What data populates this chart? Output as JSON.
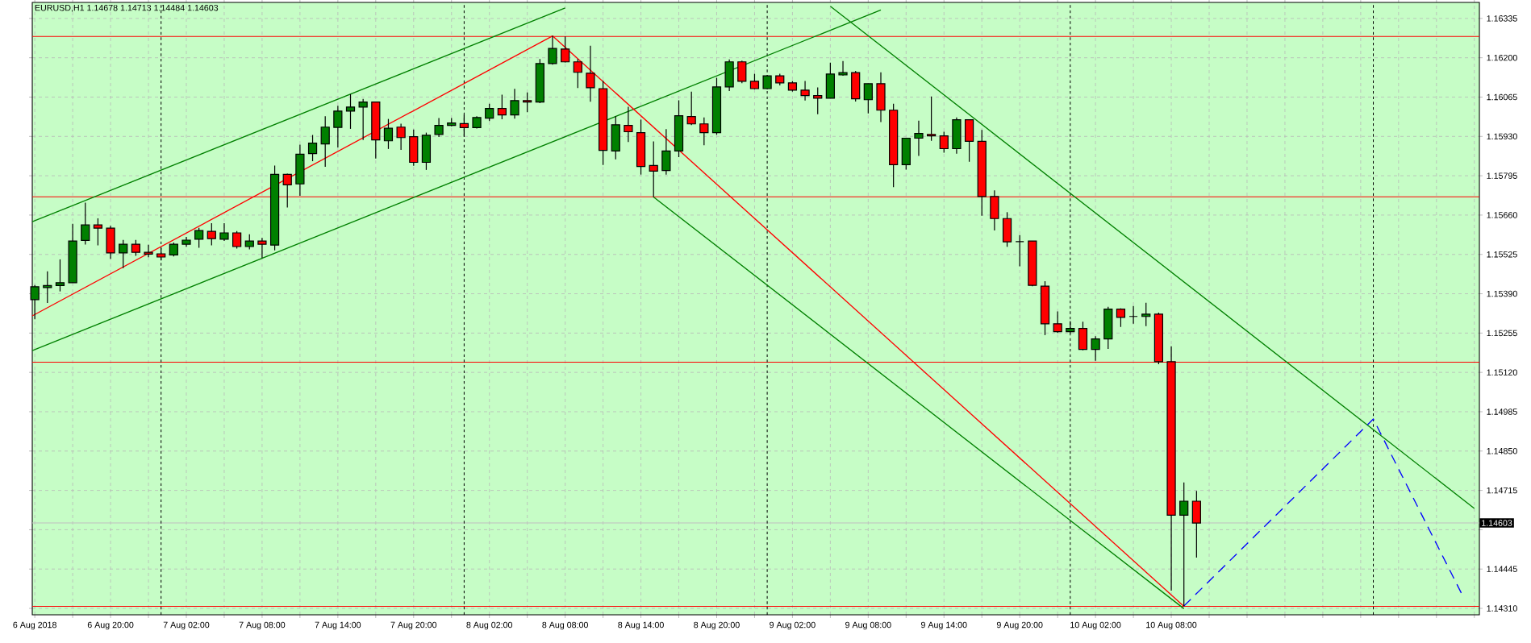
{
  "chart_data": {
    "type": "candlestick",
    "title": "EURUSD,H1  1.14678 1.14713 1.14484 1.14603",
    "x": [
      "2018-08-06T14:00",
      "2018-08-06T15:00",
      "2018-08-06T16:00",
      "2018-08-06T17:00",
      "2018-08-06T18:00",
      "2018-08-06T19:00",
      "2018-08-06T20:00",
      "2018-08-06T21:00",
      "2018-08-06T22:00",
      "2018-08-06T23:00",
      "2018-08-07T00:00",
      "2018-08-07T01:00",
      "2018-08-07T02:00",
      "2018-08-07T03:00",
      "2018-08-07T04:00",
      "2018-08-07T05:00",
      "2018-08-07T06:00",
      "2018-08-07T07:00",
      "2018-08-07T08:00",
      "2018-08-07T09:00",
      "2018-08-07T10:00",
      "2018-08-07T11:00",
      "2018-08-07T12:00",
      "2018-08-07T13:00",
      "2018-08-07T14:00",
      "2018-08-07T15:00",
      "2018-08-07T16:00",
      "2018-08-07T17:00",
      "2018-08-07T18:00",
      "2018-08-07T19:00",
      "2018-08-07T20:00",
      "2018-08-07T21:00",
      "2018-08-07T22:00",
      "2018-08-07T23:00",
      "2018-08-08T00:00",
      "2018-08-08T01:00",
      "2018-08-08T02:00",
      "2018-08-08T03:00",
      "2018-08-08T04:00",
      "2018-08-08T05:00",
      "2018-08-08T06:00",
      "2018-08-08T07:00",
      "2018-08-08T08:00",
      "2018-08-08T09:00",
      "2018-08-08T10:00",
      "2018-08-08T11:00",
      "2018-08-08T12:00",
      "2018-08-08T13:00",
      "2018-08-08T14:00",
      "2018-08-08T15:00",
      "2018-08-08T16:00",
      "2018-08-08T17:00",
      "2018-08-08T18:00",
      "2018-08-08T19:00",
      "2018-08-08T20:00",
      "2018-08-08T21:00",
      "2018-08-08T22:00",
      "2018-08-08T23:00",
      "2018-08-09T00:00",
      "2018-08-09T01:00",
      "2018-08-09T02:00",
      "2018-08-09T03:00",
      "2018-08-09T04:00",
      "2018-08-09T05:00",
      "2018-08-09T06:00",
      "2018-08-09T07:00",
      "2018-08-09T08:00",
      "2018-08-09T09:00",
      "2018-08-09T10:00",
      "2018-08-09T11:00",
      "2018-08-09T12:00",
      "2018-08-09T13:00",
      "2018-08-09T14:00",
      "2018-08-09T15:00",
      "2018-08-09T16:00",
      "2018-08-09T17:00",
      "2018-08-09T18:00",
      "2018-08-09T19:00",
      "2018-08-09T20:00",
      "2018-08-09T21:00",
      "2018-08-09T22:00",
      "2018-08-09T23:00",
      "2018-08-10T00:00",
      "2018-08-10T01:00",
      "2018-08-10T02:00",
      "2018-08-10T03:00",
      "2018-08-10T04:00",
      "2018-08-10T05:00",
      "2018-08-10T06:00",
      "2018-08-10T07:00",
      "2018-08-10T08:00",
      "2018-08-10T09:00",
      "2018-08-10T10:00"
    ],
    "ohlc": [
      [
        1.1537,
        1.1542,
        1.15302,
        1.15414
      ],
      [
        1.15411,
        1.15467,
        1.15358,
        1.15418
      ],
      [
        1.15418,
        1.15508,
        1.15398,
        1.15428
      ],
      [
        1.15428,
        1.1563,
        1.15428,
        1.15571
      ],
      [
        1.15573,
        1.15703,
        1.15559,
        1.15626
      ],
      [
        1.15626,
        1.15649,
        1.15556,
        1.15615
      ],
      [
        1.15615,
        1.15623,
        1.1551,
        1.1553
      ],
      [
        1.1553,
        1.15575,
        1.15478,
        1.1556
      ],
      [
        1.1556,
        1.15575,
        1.1552,
        1.15532
      ],
      [
        1.15532,
        1.15558,
        1.15515,
        1.15526
      ],
      [
        1.15527,
        1.15547,
        1.15504,
        1.15516
      ],
      [
        1.15523,
        1.15566,
        1.15518,
        1.1556
      ],
      [
        1.1556,
        1.15585,
        1.15551,
        1.15574
      ],
      [
        1.15577,
        1.15616,
        1.15548,
        1.15607
      ],
      [
        1.15604,
        1.15632,
        1.15556,
        1.15579
      ],
      [
        1.15577,
        1.15632,
        1.15571,
        1.15599
      ],
      [
        1.15599,
        1.15605,
        1.15545,
        1.15552
      ],
      [
        1.15552,
        1.15594,
        1.15542,
        1.15571
      ],
      [
        1.15571,
        1.15582,
        1.15513,
        1.1556
      ],
      [
        1.15557,
        1.1583,
        1.15539,
        1.158
      ],
      [
        1.158,
        1.15802,
        1.15686,
        1.15764
      ],
      [
        1.15767,
        1.15902,
        1.15726,
        1.15869
      ],
      [
        1.15871,
        1.15935,
        1.15845,
        1.15907
      ],
      [
        1.15904,
        1.15999,
        1.15826,
        1.15962
      ],
      [
        1.15961,
        1.16035,
        1.15892,
        1.16017
      ],
      [
        1.16017,
        1.16075,
        1.15956,
        1.16031
      ],
      [
        1.16031,
        1.16059,
        1.15918,
        1.16048
      ],
      [
        1.16048,
        1.16048,
        1.15854,
        1.15918
      ],
      [
        1.15915,
        1.1599,
        1.15887,
        1.15958
      ],
      [
        1.15962,
        1.15974,
        1.15884,
        1.15926
      ],
      [
        1.15929,
        1.15954,
        1.15829,
        1.15841
      ],
      [
        1.15841,
        1.15943,
        1.15815,
        1.15934
      ],
      [
        1.15937,
        1.15993,
        1.15928,
        1.15968
      ],
      [
        1.15968,
        1.15993,
        1.15965,
        1.15976
      ],
      [
        1.15974,
        1.16004,
        1.15929,
        1.1596
      ],
      [
        1.1596,
        1.15999,
        1.15957,
        1.15995
      ],
      [
        1.15993,
        1.16042,
        1.15983,
        1.16026
      ],
      [
        1.16026,
        1.16073,
        1.15989,
        1.16004
      ],
      [
        1.16004,
        1.16093,
        1.15991,
        1.16053
      ],
      [
        1.16053,
        1.16081,
        1.16013,
        1.16048
      ],
      [
        1.16048,
        1.16196,
        1.16044,
        1.1618
      ],
      [
        1.1618,
        1.16275,
        1.16176,
        1.16232
      ],
      [
        1.1623,
        1.16273,
        1.16184,
        1.16186
      ],
      [
        1.16186,
        1.16196,
        1.16096,
        1.1615
      ],
      [
        1.16147,
        1.16241,
        1.16049,
        1.16097
      ],
      [
        1.16094,
        1.16121,
        1.15832,
        1.15882
      ],
      [
        1.1588,
        1.15999,
        1.15851,
        1.1597
      ],
      [
        1.15968,
        1.16032,
        1.15911,
        1.15946
      ],
      [
        1.15943,
        1.15988,
        1.15799,
        1.15827
      ],
      [
        1.1583,
        1.15913,
        1.15722,
        1.15811
      ],
      [
        1.15813,
        1.15955,
        1.15799,
        1.1588
      ],
      [
        1.1588,
        1.16054,
        1.15859,
        1.16001
      ],
      [
        1.15998,
        1.16084,
        1.15969,
        1.15973
      ],
      [
        1.15973,
        1.15995,
        1.159,
        1.15943
      ],
      [
        1.15943,
        1.16131,
        1.15936,
        1.161
      ],
      [
        1.161,
        1.16194,
        1.16086,
        1.16186
      ],
      [
        1.16186,
        1.1619,
        1.16113,
        1.16119
      ],
      [
        1.16119,
        1.16145,
        1.16092,
        1.16094
      ],
      [
        1.16094,
        1.1614,
        1.16092,
        1.16138
      ],
      [
        1.16138,
        1.16145,
        1.16105,
        1.16114
      ],
      [
        1.16114,
        1.1612,
        1.16084,
        1.16089
      ],
      [
        1.16089,
        1.1612,
        1.16053,
        1.1607
      ],
      [
        1.1607,
        1.16098,
        1.16006,
        1.16061
      ],
      [
        1.16061,
        1.16183,
        1.16061,
        1.16144
      ],
      [
        1.16141,
        1.16189,
        1.16138,
        1.16149
      ],
      [
        1.16149,
        1.16155,
        1.1605,
        1.16059
      ],
      [
        1.16056,
        1.16111,
        1.16009,
        1.16111
      ],
      [
        1.16111,
        1.1615,
        1.15979,
        1.1602
      ],
      [
        1.1602,
        1.16042,
        1.15756,
        1.15833
      ],
      [
        1.15833,
        1.15924,
        1.15816,
        1.15924
      ],
      [
        1.15924,
        1.15984,
        1.15863,
        1.1594
      ],
      [
        1.15937,
        1.16067,
        1.15915,
        1.15932
      ],
      [
        1.15932,
        1.15946,
        1.15874,
        1.15888
      ],
      [
        1.15888,
        1.15995,
        1.15871,
        1.15987
      ],
      [
        1.15987,
        1.15987,
        1.15843,
        1.15913
      ],
      [
        1.15913,
        1.15952,
        1.15658,
        1.15724
      ],
      [
        1.15724,
        1.15745,
        1.15607,
        1.15648
      ],
      [
        1.15648,
        1.1567,
        1.15551,
        1.15568
      ],
      [
        1.15569,
        1.15591,
        1.15484,
        1.15569
      ],
      [
        1.15571,
        1.15571,
        1.15416,
        1.15419
      ],
      [
        1.15416,
        1.15433,
        1.15248,
        1.15287
      ],
      [
        1.15287,
        1.15329,
        1.15255,
        1.1526
      ],
      [
        1.1526,
        1.15296,
        1.15254,
        1.15271
      ],
      [
        1.15271,
        1.15294,
        1.15196,
        1.15199
      ],
      [
        1.15199,
        1.15244,
        1.1516,
        1.15235
      ],
      [
        1.15235,
        1.15345,
        1.15201,
        1.15337
      ],
      [
        1.15337,
        1.1534,
        1.15276,
        1.15309
      ],
      [
        1.15312,
        1.15348,
        1.15287,
        1.15312
      ],
      [
        1.15312,
        1.15359,
        1.15279,
        1.1532
      ],
      [
        1.1532,
        1.15325,
        1.15148,
        1.15157
      ],
      [
        1.15157,
        1.1521,
        1.14371,
        1.1463
      ],
      [
        1.1463,
        1.14742,
        1.14317,
        1.14678
      ],
      [
        1.14678,
        1.14713,
        1.14484,
        1.14603
      ]
    ],
    "colors": [
      "#008000",
      "#008000",
      "#008000",
      "#008000",
      "#008000",
      "#ff0000",
      "#ff0000",
      "#008000",
      "#ff0000",
      "#ff0000",
      "#ff0000",
      "#008000",
      "#008000",
      "#008000",
      "#ff0000",
      "#008000",
      "#ff0000",
      "#008000",
      "#ff0000",
      "#008000",
      "#ff0000",
      "#008000",
      "#008000",
      "#008000",
      "#008000",
      "#008000",
      "#008000",
      "#ff0000",
      "#008000",
      "#ff0000",
      "#ff0000",
      "#008000",
      "#008000",
      "#008000",
      "#ff0000",
      "#008000",
      "#008000",
      "#ff0000",
      "#008000",
      "#ff0000",
      "#008000",
      "#008000",
      "#ff0000",
      "#ff0000",
      "#ff0000",
      "#ff0000",
      "#008000",
      "#ff0000",
      "#ff0000",
      "#ff0000",
      "#008000",
      "#008000",
      "#ff0000",
      "#ff0000",
      "#008000",
      "#008000",
      "#ff0000",
      "#ff0000",
      "#008000",
      "#ff0000",
      "#ff0000",
      "#ff0000",
      "#ff0000",
      "#008000",
      "#008000",
      "#ff0000",
      "#008000",
      "#ff0000",
      "#ff0000",
      "#008000",
      "#008000",
      "#ff0000",
      "#ff0000",
      "#008000",
      "#ff0000",
      "#ff0000",
      "#ff0000",
      "#ff0000",
      "#000000",
      "#ff0000",
      "#ff0000",
      "#ff0000",
      "#008000",
      "#ff0000",
      "#008000",
      "#008000",
      "#ff0000",
      "#000000",
      "#008000",
      "#ff0000",
      "#ff0000",
      "#008000",
      "#ff0000"
    ],
    "series": [
      {
        "type": "line",
        "color": "#008000",
        "line_style": "solid",
        "x": [
          "2018-08-06T13:48",
          "2018-08-08T08:00"
        ],
        "values": [
          1.15637,
          1.16371
        ]
      },
      {
        "type": "line",
        "color": "#008000",
        "line_style": "solid",
        "x": [
          "2018-08-06T13:48",
          "2018-08-09T09:00"
        ],
        "values": [
          1.15195,
          1.16364
        ]
      },
      {
        "type": "line",
        "color": "#ff0000",
        "line_style": "solid",
        "x": [
          "2018-08-06T13:48",
          "2018-08-08T07:00"
        ],
        "values": [
          1.15314,
          1.16275
        ]
      },
      {
        "type": "line",
        "color": "#ff0000",
        "line_style": "solid",
        "x": [
          "2018-08-08T07:00",
          "2018-08-10T09:00"
        ],
        "values": [
          1.16275,
          1.14317
        ]
      },
      {
        "type": "line",
        "color": "#008000",
        "line_style": "solid",
        "x": [
          "2018-08-08T15:00",
          "2018-08-10T09:00"
        ],
        "values": [
          1.15722,
          1.14309
        ]
      },
      {
        "type": "line",
        "color": "#008000",
        "line_style": "solid",
        "x": [
          "2018-08-09T05:00",
          "2018-08-11T08:00"
        ],
        "values": [
          1.16377,
          1.14653
        ]
      },
      {
        "type": "line",
        "color": "#0000ff",
        "line_style": "dashed",
        "x": [
          "2018-08-10T09:00",
          "2018-08-11T00:00",
          "2018-08-11T07:00"
        ],
        "values": [
          1.14318,
          1.1496,
          1.1436
        ]
      }
    ],
    "ref_lines": [
      {
        "axis": "y",
        "value": 1.16273,
        "color": "#ff0000",
        "line_style": "solid"
      },
      {
        "axis": "y",
        "value": 1.15723,
        "color": "#ff0000",
        "line_style": "solid"
      },
      {
        "axis": "y",
        "value": 1.15155,
        "color": "#ff0000",
        "line_style": "solid"
      },
      {
        "axis": "y",
        "value": 1.14317,
        "color": "#ff0000",
        "line_style": "solid"
      },
      {
        "axis": "y",
        "value": 1.14603,
        "label": "1.14603",
        "color": "#c0c0c0",
        "line_style": "solid"
      },
      {
        "axis": "x",
        "value": "2018-08-07T00:00",
        "color": "#000000",
        "line_style": "dotted"
      },
      {
        "axis": "x",
        "value": "2018-08-08T00:00",
        "color": "#000000",
        "line_style": "dotted"
      },
      {
        "axis": "x",
        "value": "2018-08-09T00:00",
        "color": "#000000",
        "line_style": "dotted"
      },
      {
        "axis": "x",
        "value": "2018-08-10T00:00",
        "color": "#000000",
        "line_style": "dotted"
      },
      {
        "axis": "x",
        "value": "2018-08-11T00:00",
        "color": "#000000",
        "line_style": "dotted"
      }
    ],
    "xlim": [
      "2018-08-06T13:48",
      "2018-08-11T08:24"
    ],
    "xticks": [
      {
        "value": "2018-08-06T14:00",
        "label": "6 Aug 2018"
      },
      {
        "value": "2018-08-06T17:00",
        "label": null
      },
      {
        "value": "2018-08-06T20:00",
        "label": "6 Aug 20:00"
      },
      {
        "value": "2018-08-06T23:00",
        "label": null
      },
      {
        "value": "2018-08-07T02:00",
        "label": "7 Aug 02:00"
      },
      {
        "value": "2018-08-07T05:00",
        "label": null
      },
      {
        "value": "2018-08-07T08:00",
        "label": "7 Aug 08:00"
      },
      {
        "value": "2018-08-07T11:00",
        "label": null
      },
      {
        "value": "2018-08-07T14:00",
        "label": "7 Aug 14:00"
      },
      {
        "value": "2018-08-07T17:00",
        "label": null
      },
      {
        "value": "2018-08-07T20:00",
        "label": "7 Aug 20:00"
      },
      {
        "value": "2018-08-07T23:00",
        "label": null
      },
      {
        "value": "2018-08-08T02:00",
        "label": "8 Aug 02:00"
      },
      {
        "value": "2018-08-08T05:00",
        "label": null
      },
      {
        "value": "2018-08-08T08:00",
        "label": "8 Aug 08:00"
      },
      {
        "value": "2018-08-08T11:00",
        "label": null
      },
      {
        "value": "2018-08-08T14:00",
        "label": "8 Aug 14:00"
      },
      {
        "value": "2018-08-08T17:00",
        "label": null
      },
      {
        "value": "2018-08-08T20:00",
        "label": "8 Aug 20:00"
      },
      {
        "value": "2018-08-08T23:00",
        "label": null
      },
      {
        "value": "2018-08-09T02:00",
        "label": "9 Aug 02:00"
      },
      {
        "value": "2018-08-09T05:00",
        "label": null
      },
      {
        "value": "2018-08-09T08:00",
        "label": "9 Aug 08:00"
      },
      {
        "value": "2018-08-09T11:00",
        "label": null
      },
      {
        "value": "2018-08-09T14:00",
        "label": "9 Aug 14:00"
      },
      {
        "value": "2018-08-09T17:00",
        "label": null
      },
      {
        "value": "2018-08-09T20:00",
        "label": "9 Aug 20:00"
      },
      {
        "value": "2018-08-09T23:00",
        "label": null
      },
      {
        "value": "2018-08-10T02:00",
        "label": "10 Aug 02:00"
      },
      {
        "value": "2018-08-10T05:00",
        "label": null
      },
      {
        "value": "2018-08-10T08:00",
        "label": "10 Aug 08:00"
      },
      {
        "value": "2018-08-10T11:00",
        "label": null
      },
      {
        "value": "2018-08-10T14:00",
        "label": null
      },
      {
        "value": "2018-08-10T17:00",
        "label": null
      },
      {
        "value": "2018-08-10T20:00",
        "label": null
      },
      {
        "value": "2018-08-10T23:00",
        "label": null
      },
      {
        "value": "2018-08-11T02:00",
        "label": null
      },
      {
        "value": "2018-08-11T05:00",
        "label": null
      },
      {
        "value": "2018-08-11T08:00",
        "label": null
      }
    ],
    "ylim": [
      1.14288,
      1.1639
    ],
    "yticks": [
      {
        "value": 1.1431,
        "label": "1.14310"
      },
      {
        "value": 1.14445,
        "label": "1.14445"
      },
      {
        "value": 1.1458,
        "label": null
      },
      {
        "value": 1.14715,
        "label": "1.14715"
      },
      {
        "value": 1.1485,
        "label": "1.14850"
      },
      {
        "value": 1.14985,
        "label": "1.14985"
      },
      {
        "value": 1.1512,
        "label": "1.15120"
      },
      {
        "value": 1.15255,
        "label": "1.15255"
      },
      {
        "value": 1.1539,
        "label": "1.15390"
      },
      {
        "value": 1.15525,
        "label": "1.15525"
      },
      {
        "value": 1.1566,
        "label": "1.15660"
      },
      {
        "value": 1.15795,
        "label": "1.15795"
      },
      {
        "value": 1.1593,
        "label": "1.15930"
      },
      {
        "value": 1.16065,
        "label": "1.16065"
      },
      {
        "value": 1.162,
        "label": "1.16200"
      },
      {
        "value": 1.16335,
        "label": "1.16335"
      }
    ],
    "grid": true
  }
}
